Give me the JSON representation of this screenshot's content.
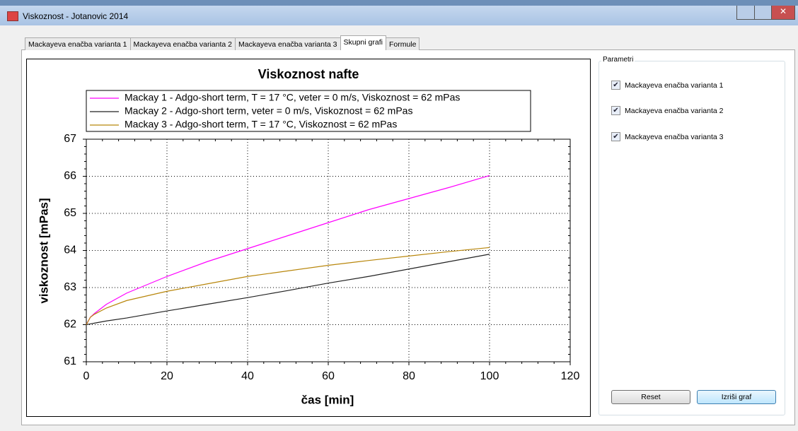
{
  "window": {
    "title": "Viskoznost - Jotanovic 2014"
  },
  "tabs": [
    "Mackayeva enačba varianta 1",
    "Mackayeva enačba varianta 2",
    "Mackayeva enačba varianta 3",
    "Skupni grafi",
    "Formule"
  ],
  "active_tab": 3,
  "chart_data": {
    "type": "line",
    "title": "Viskoznost nafte",
    "xlabel": "čas [min]",
    "ylabel": "viskoznost [mPas]",
    "x": [
      0,
      1,
      2,
      5,
      10,
      20,
      30,
      40,
      50,
      60,
      70,
      80,
      90,
      100
    ],
    "series": [
      {
        "name": "Mackay 1 - Adgo-short term, T = 17 °C, veter = 0 m/s, Viskoznost = 62 mPas",
        "color": "#ff00ff",
        "values": [
          62.0,
          62.2,
          62.3,
          62.55,
          62.85,
          63.3,
          63.7,
          64.05,
          64.4,
          64.75,
          65.1,
          65.4,
          65.7,
          66.02
        ]
      },
      {
        "name": "Mackay 2 - Adgo-short term, veter = 0 m/s, Viskoznost = 62 mPas",
        "color": "#222222",
        "values": [
          62.0,
          62.02,
          62.04,
          62.1,
          62.18,
          62.37,
          62.55,
          62.73,
          62.92,
          63.12,
          63.3,
          63.5,
          63.7,
          63.9
        ]
      },
      {
        "name": "Mackay 3 - Adgo-short term, T = 17 °C, Viskoznost = 62 mPas",
        "color": "#b8860b",
        "values": [
          62.0,
          62.2,
          62.28,
          62.45,
          62.65,
          62.9,
          63.1,
          63.3,
          63.45,
          63.6,
          63.73,
          63.85,
          63.97,
          64.08
        ]
      }
    ],
    "xlim": [
      0,
      120
    ],
    "xticks": [
      0,
      20,
      40,
      60,
      80,
      100,
      120
    ],
    "ylim": [
      61,
      67
    ],
    "yticks": [
      61,
      62,
      63,
      64,
      65,
      66,
      67
    ],
    "grid": true
  },
  "panel": {
    "title": "Parametri",
    "checkboxes": [
      {
        "label": "Mackayeva enačba varianta 1",
        "checked": true
      },
      {
        "label": "Mackayeva enačba varianta 2",
        "checked": true
      },
      {
        "label": "Mackayeva enačba varianta 3",
        "checked": true
      }
    ],
    "buttons": [
      "Reset",
      "Izriši graf"
    ]
  }
}
